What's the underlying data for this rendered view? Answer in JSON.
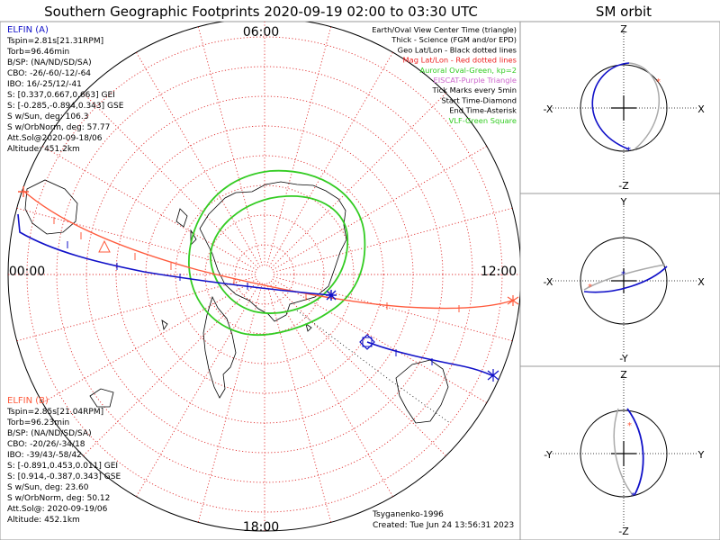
{
  "title": "Southern Geographic Footprints 2020-09-19 02:00 to 03:30 UTC",
  "orbit_title": "SM orbit",
  "colors": {
    "elfin_a": "#1010c8",
    "elfin_b": "#ff5a3c",
    "grid": "#e03030",
    "oval": "#33cc22",
    "orbit_gray": "#aaaaaa",
    "vlf": "#33cc22",
    "eiscat": "#cc66cc",
    "mag": "#ee2222"
  },
  "map": {
    "time_labels": {
      "top": "06:00",
      "left": "00:00",
      "right": "12:00",
      "bottom": "18:00"
    }
  },
  "legend": [
    {
      "text": "Earth/Oval View Center Time (triangle)",
      "color": "#000000"
    },
    {
      "text": "Thick - Science (FGM and/or EPD)",
      "color": "#000000"
    },
    {
      "text": "Geo Lat/Lon - Black dotted lines",
      "color": "#000000"
    },
    {
      "text": "Mag Lat/Lon - Red dotted lines",
      "color": "#ee2222"
    },
    {
      "text": "Auroral Oval-Green, kp=2",
      "color": "#33cc22"
    },
    {
      "text": "EISCAT-Purple Triangle",
      "color": "#cc66cc"
    },
    {
      "text": "Tick Marks every 5min",
      "color": "#000000"
    },
    {
      "text": "Start Time-Diamond",
      "color": "#000000"
    },
    {
      "text": "End Time-Asterisk",
      "color": "#000000"
    },
    {
      "text": "VLF-Green Square",
      "color": "#33cc22"
    }
  ],
  "elfin_a": {
    "name": "ELFIN (A)",
    "lines": [
      "Tspin=2.81s[21.31RPM]",
      "Torb=96.46min",
      "B/SP: (NA/ND/SD/SA)",
      "CBO: -26/-60/-12/-64",
      "IBO: 16/-25/12/-41",
      "S: [0.337,0.667,0.663] GEI",
      "S: [-0.285,-0.894,0.343] GSE",
      "S w/Sun, deg: 106.3",
      "S w/OrbNorm, deg: 57.77",
      "Att.Sol@2020-09-18/06",
      "Altitude: 451.2km"
    ]
  },
  "elfin_b": {
    "name": "ELFIN (B)",
    "lines": [
      "Tspin=2.85s[21.04RPM]",
      "Torb=96.23min",
      "B/SP: (NA/ND/SD/SA)",
      "CBO: -20/26/-34/18",
      "IBO: -39/43/-58/42",
      "S: [-0.891,0.453,0.011] GEI",
      "S: [0.914,-0.387,0.343] GSE",
      "S w/Sun, deg: 23.60",
      "S w/OrbNorm, deg: 50.12",
      "Att.Sol@: 2020-09-19/06",
      "Altitude: 452.1km"
    ]
  },
  "footer": {
    "model": "Tsyganenko-1996",
    "created": "Created: Tue Jun 24 13:56:31 2023"
  },
  "orbit_panels": [
    {
      "top": "Z",
      "bottom": "-Z",
      "left": "-X",
      "right": "X"
    },
    {
      "top": "Y",
      "bottom": "-Y",
      "left": "-X",
      "right": "X"
    },
    {
      "top": "Z",
      "bottom": "-Z",
      "left": "-Y",
      "right": "Y"
    }
  ]
}
